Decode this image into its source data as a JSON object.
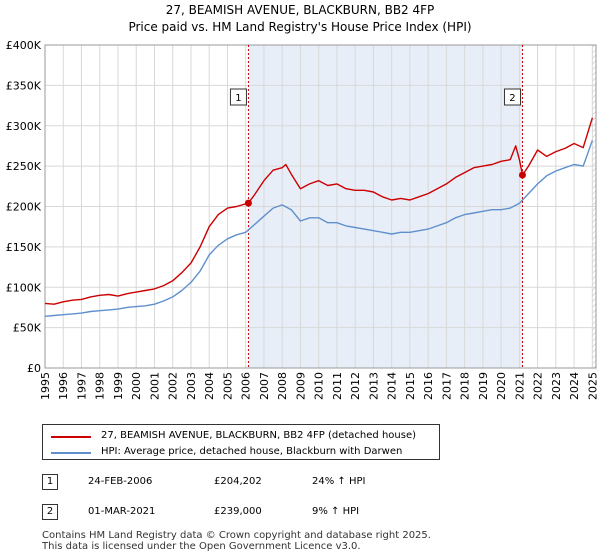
{
  "chart_data": {
    "type": "line",
    "title": "27, BEAMISH AVENUE, BLACKBURN, BB2 4FP",
    "subtitle": "Price paid vs. HM Land Registry's House Price Index (HPI)",
    "xlim": [
      1995,
      2025.2
    ],
    "ylim": [
      0,
      400000
    ],
    "y_ticks": [
      0,
      50000,
      100000,
      150000,
      200000,
      250000,
      300000,
      350000,
      400000
    ],
    "y_tick_labels": [
      "£0",
      "£50K",
      "£100K",
      "£150K",
      "£200K",
      "£250K",
      "£300K",
      "£350K",
      "£400K"
    ],
    "x_ticks": [
      1995,
      1996,
      1997,
      1998,
      1999,
      2000,
      2001,
      2002,
      2003,
      2004,
      2005,
      2006,
      2007,
      2008,
      2009,
      2010,
      2011,
      2012,
      2013,
      2014,
      2015,
      2016,
      2017,
      2018,
      2019,
      2020,
      2021,
      2022,
      2023,
      2024,
      2025
    ],
    "grid": true,
    "shaded_region": [
      2006.15,
      2021.17
    ],
    "hatched_after": 2025.0,
    "series": [
      {
        "name": "27, BEAMISH AVENUE, BLACKBURN, BB2 4FP (detached house)",
        "color": "#cc0000",
        "x": [
          1995,
          1995.5,
          1996,
          1996.5,
          1997,
          1997.5,
          1998,
          1998.5,
          1999,
          1999.5,
          2000,
          2000.5,
          2001,
          2001.5,
          2002,
          2002.5,
          2003,
          2003.5,
          2004,
          2004.5,
          2005,
          2005.5,
          2006.15,
          2006.5,
          2007,
          2007.5,
          2008,
          2008.2,
          2008.5,
          2009,
          2009.5,
          2010,
          2010.5,
          2011,
          2011.5,
          2012,
          2012.5,
          2013,
          2013.5,
          2014,
          2014.5,
          2015,
          2015.5,
          2016,
          2016.5,
          2017,
          2017.5,
          2018,
          2018.5,
          2019,
          2019.5,
          2020,
          2020.5,
          2020.8,
          2021.0,
          2021.17,
          2021.5,
          2022,
          2022.5,
          2023,
          2023.5,
          2024,
          2024.5,
          2025
        ],
        "y": [
          80000,
          79000,
          82000,
          84000,
          85000,
          88000,
          90000,
          91000,
          89000,
          92000,
          94000,
          96000,
          98000,
          102000,
          108000,
          118000,
          130000,
          150000,
          175000,
          190000,
          198000,
          200000,
          204202,
          215000,
          232000,
          245000,
          248000,
          252000,
          240000,
          222000,
          228000,
          232000,
          226000,
          228000,
          222000,
          220000,
          220000,
          218000,
          212000,
          208000,
          210000,
          208000,
          212000,
          216000,
          222000,
          228000,
          236000,
          242000,
          248000,
          250000,
          252000,
          256000,
          258000,
          275000,
          258000,
          239000,
          250000,
          270000,
          262000,
          268000,
          272000,
          278000,
          273000,
          310000
        ]
      },
      {
        "name": "HPI: Average price, detached house, Blackburn with Darwen",
        "color": "#6090cc",
        "x": [
          1995,
          1995.5,
          1996,
          1996.5,
          1997,
          1997.5,
          1998,
          1998.5,
          1999,
          1999.5,
          2000,
          2000.5,
          2001,
          2001.5,
          2002,
          2002.5,
          2003,
          2003.5,
          2004,
          2004.5,
          2005,
          2005.5,
          2006,
          2006.5,
          2007,
          2007.5,
          2008,
          2008.5,
          2009,
          2009.5,
          2010,
          2010.5,
          2011,
          2011.5,
          2012,
          2012.5,
          2013,
          2013.5,
          2014,
          2014.5,
          2015,
          2015.5,
          2016,
          2016.5,
          2017,
          2017.5,
          2018,
          2018.5,
          2019,
          2019.5,
          2020,
          2020.5,
          2021,
          2021.5,
          2022,
          2022.5,
          2023,
          2023.5,
          2024,
          2024.5,
          2025
        ],
        "y": [
          64000,
          65000,
          66000,
          67000,
          68000,
          70000,
          71000,
          72000,
          73000,
          75000,
          76000,
          77000,
          79000,
          83000,
          88000,
          96000,
          106000,
          120000,
          140000,
          152000,
          160000,
          165000,
          168000,
          178000,
          188000,
          198000,
          202000,
          196000,
          182000,
          186000,
          186000,
          180000,
          180000,
          176000,
          174000,
          172000,
          170000,
          168000,
          166000,
          168000,
          168000,
          170000,
          172000,
          176000,
          180000,
          186000,
          190000,
          192000,
          194000,
          196000,
          196000,
          198000,
          204000,
          216000,
          228000,
          238000,
          244000,
          248000,
          252000,
          250000,
          282000
        ]
      }
    ],
    "sales": [
      {
        "label": "1",
        "x": 2006.15,
        "y": 204202
      },
      {
        "label": "2",
        "x": 2021.17,
        "y": 239000
      }
    ]
  },
  "legend": {
    "property_label": "27, BEAMISH AVENUE, BLACKBURN, BB2 4FP (detached house)",
    "hpi_label": "HPI: Average price, detached house, Blackburn with Darwen"
  },
  "sales_table": [
    {
      "num": "1",
      "date": "24-FEB-2006",
      "price": "£204,202",
      "hpi": "24% ↑ HPI"
    },
    {
      "num": "2",
      "date": "01-MAR-2021",
      "price": "£239,000",
      "hpi": "9% ↑ HPI"
    }
  ],
  "footer": {
    "line1": "Contains HM Land Registry data © Crown copyright and database right 2025.",
    "line2": "This data is licensed under the Open Government Licence v3.0."
  },
  "colors": {
    "property": "#cc0000",
    "hpi": "#6090cc",
    "shade": "#e8eef8",
    "grid": "#d8d8d8"
  }
}
